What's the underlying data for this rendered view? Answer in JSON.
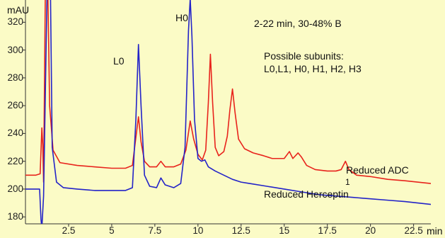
{
  "chart_data": {
    "type": "line",
    "ylabel": "mAU",
    "xlabel": "min",
    "xlim": [
      0,
      23.5
    ],
    "ylim": [
      175,
      336
    ],
    "xticks": [
      2.5,
      5,
      7.5,
      10,
      12.5,
      15,
      17.5,
      20,
      22.5
    ],
    "xtick_labels": [
      "2.5",
      "5",
      "7.5",
      "10",
      "12.5",
      "15",
      "17.5",
      "20",
      "22.5"
    ],
    "yticks": [
      180,
      200,
      220,
      240,
      260,
      280,
      300,
      320
    ],
    "ytick_labels": [
      "180",
      "200",
      "220",
      "240",
      "260",
      "280",
      "300",
      "320"
    ],
    "grid": false,
    "legend": "none",
    "annotations": {
      "gradient": "2-22 min, 30-48% B",
      "subunits_title": "Possible subunits:",
      "subunits_list": "L0,L1, H0, H1, H2, H3",
      "peak_l0": "L0",
      "peak_h0": "H0",
      "series1_label": "Reduced ADC",
      "series1_label_index": "1",
      "series2_label": "Reduced Herceptin"
    },
    "series": [
      {
        "name": "Reduced ADC",
        "color": "#e8231c",
        "points": [
          [
            0.0,
            210
          ],
          [
            0.6,
            210
          ],
          [
            0.85,
            211
          ],
          [
            0.95,
            244
          ],
          [
            1.0,
            232
          ],
          [
            1.05,
            205
          ],
          [
            1.15,
            340
          ],
          [
            1.3,
            340
          ],
          [
            1.4,
            260
          ],
          [
            1.6,
            228
          ],
          [
            2.0,
            219
          ],
          [
            3.0,
            217
          ],
          [
            4.0,
            216
          ],
          [
            5.0,
            215
          ],
          [
            5.8,
            215
          ],
          [
            6.2,
            217
          ],
          [
            6.35,
            232
          ],
          [
            6.55,
            252
          ],
          [
            6.7,
            234
          ],
          [
            6.9,
            220
          ],
          [
            7.2,
            216
          ],
          [
            7.6,
            216
          ],
          [
            7.85,
            220
          ],
          [
            8.1,
            216
          ],
          [
            8.6,
            216
          ],
          [
            9.0,
            218
          ],
          [
            9.3,
            228
          ],
          [
            9.55,
            249
          ],
          [
            9.75,
            236
          ],
          [
            10.0,
            225
          ],
          [
            10.25,
            221
          ],
          [
            10.45,
            228
          ],
          [
            10.6,
            262
          ],
          [
            10.72,
            297
          ],
          [
            10.85,
            262
          ],
          [
            11.0,
            230
          ],
          [
            11.2,
            224
          ],
          [
            11.5,
            227
          ],
          [
            11.7,
            238
          ],
          [
            11.85,
            257
          ],
          [
            12.0,
            272
          ],
          [
            12.15,
            255
          ],
          [
            12.35,
            236
          ],
          [
            12.7,
            229
          ],
          [
            13.2,
            226
          ],
          [
            13.8,
            224
          ],
          [
            14.3,
            222
          ],
          [
            15.0,
            222
          ],
          [
            15.3,
            227
          ],
          [
            15.5,
            222
          ],
          [
            15.8,
            226
          ],
          [
            16.0,
            223
          ],
          [
            16.3,
            217
          ],
          [
            16.8,
            214
          ],
          [
            17.5,
            213
          ],
          [
            18.0,
            213
          ],
          [
            18.3,
            214
          ],
          [
            18.55,
            220
          ],
          [
            18.75,
            214
          ],
          [
            19.2,
            210
          ],
          [
            20.0,
            209
          ],
          [
            21.0,
            207
          ],
          [
            22.0,
            206
          ],
          [
            23.5,
            204
          ]
        ]
      },
      {
        "name": "Reduced Herceptin",
        "color": "#2323c8",
        "points": [
          [
            0.0,
            200
          ],
          [
            0.6,
            200
          ],
          [
            0.82,
            200
          ],
          [
            0.9,
            178
          ],
          [
            0.95,
            172
          ],
          [
            1.05,
            195
          ],
          [
            1.25,
            340
          ],
          [
            1.45,
            340
          ],
          [
            1.55,
            230
          ],
          [
            1.8,
            205
          ],
          [
            2.2,
            201
          ],
          [
            3.0,
            200
          ],
          [
            4.0,
            199
          ],
          [
            5.0,
            199
          ],
          [
            5.8,
            199
          ],
          [
            6.2,
            201
          ],
          [
            6.4,
            250
          ],
          [
            6.55,
            304
          ],
          [
            6.7,
            260
          ],
          [
            6.9,
            210
          ],
          [
            7.2,
            202
          ],
          [
            7.6,
            201
          ],
          [
            7.85,
            208
          ],
          [
            8.1,
            203
          ],
          [
            8.6,
            201
          ],
          [
            9.0,
            204
          ],
          [
            9.25,
            230
          ],
          [
            9.45,
            314
          ],
          [
            9.55,
            337
          ],
          [
            9.65,
            310
          ],
          [
            9.8,
            250
          ],
          [
            10.0,
            222
          ],
          [
            10.2,
            220
          ],
          [
            10.4,
            221
          ],
          [
            10.6,
            216
          ],
          [
            11.0,
            213
          ],
          [
            11.5,
            210
          ],
          [
            12.0,
            207
          ],
          [
            12.5,
            205
          ],
          [
            13.0,
            204
          ],
          [
            14.0,
            202
          ],
          [
            15.0,
            200
          ],
          [
            16.0,
            198
          ],
          [
            17.0,
            196
          ],
          [
            18.0,
            195
          ],
          [
            19.0,
            194
          ],
          [
            20.0,
            193
          ],
          [
            21.0,
            192
          ],
          [
            22.0,
            191
          ],
          [
            23.5,
            189
          ]
        ]
      }
    ]
  }
}
